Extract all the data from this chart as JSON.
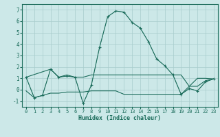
{
  "xlabel": "Humidex (Indice chaleur)",
  "xlim": [
    -0.5,
    23.5
  ],
  "ylim": [
    -1.5,
    7.5
  ],
  "yticks": [
    -1,
    0,
    1,
    2,
    3,
    4,
    5,
    6,
    7
  ],
  "xticks": [
    0,
    1,
    2,
    3,
    4,
    5,
    6,
    7,
    8,
    9,
    10,
    11,
    12,
    13,
    14,
    15,
    16,
    17,
    18,
    19,
    20,
    21,
    22,
    23
  ],
  "bg_color": "#cce8e8",
  "grid_color": "#a8cccc",
  "line_color": "#1a6b5a",
  "main_curve": {
    "x": [
      0,
      1,
      2,
      3,
      4,
      5,
      6,
      7,
      8,
      9,
      10,
      11,
      12,
      13,
      14,
      15,
      16,
      17,
      18,
      19,
      20,
      21,
      22,
      23
    ],
    "y": [
      1.1,
      -0.7,
      -0.5,
      1.8,
      1.1,
      1.2,
      1.1,
      -1.2,
      0.4,
      3.7,
      6.4,
      6.9,
      6.8,
      5.9,
      5.4,
      4.2,
      2.7,
      2.1,
      1.3,
      -0.4,
      0.1,
      -0.1,
      0.7,
      0.95
    ]
  },
  "upper_flat_curve": {
    "x": [
      0,
      3,
      4,
      5,
      6,
      7,
      8,
      9,
      10,
      11,
      12,
      13,
      14,
      15,
      16,
      17,
      18,
      19,
      20,
      21,
      22,
      23
    ],
    "y": [
      1.1,
      1.8,
      1.1,
      1.3,
      1.1,
      1.1,
      1.3,
      1.3,
      1.3,
      1.3,
      1.3,
      1.3,
      1.3,
      1.3,
      1.3,
      1.3,
      1.3,
      1.3,
      0.3,
      1.0,
      1.0,
      0.95
    ]
  },
  "lower_flat_curve": {
    "x": [
      0,
      1,
      2,
      3,
      4,
      5,
      6,
      7,
      8,
      9,
      10,
      11,
      12,
      13,
      14,
      15,
      16,
      17,
      18,
      19,
      20,
      21,
      22,
      23
    ],
    "y": [
      -0.1,
      -0.7,
      -0.5,
      -0.3,
      -0.3,
      -0.2,
      -0.2,
      -0.2,
      -0.1,
      -0.1,
      -0.1,
      -0.1,
      -0.4,
      -0.4,
      -0.4,
      -0.4,
      -0.4,
      -0.4,
      -0.4,
      -0.4,
      0.3,
      0.3,
      0.8,
      0.95
    ]
  },
  "xlabel_fontsize": 6,
  "tick_fontsize": 5
}
